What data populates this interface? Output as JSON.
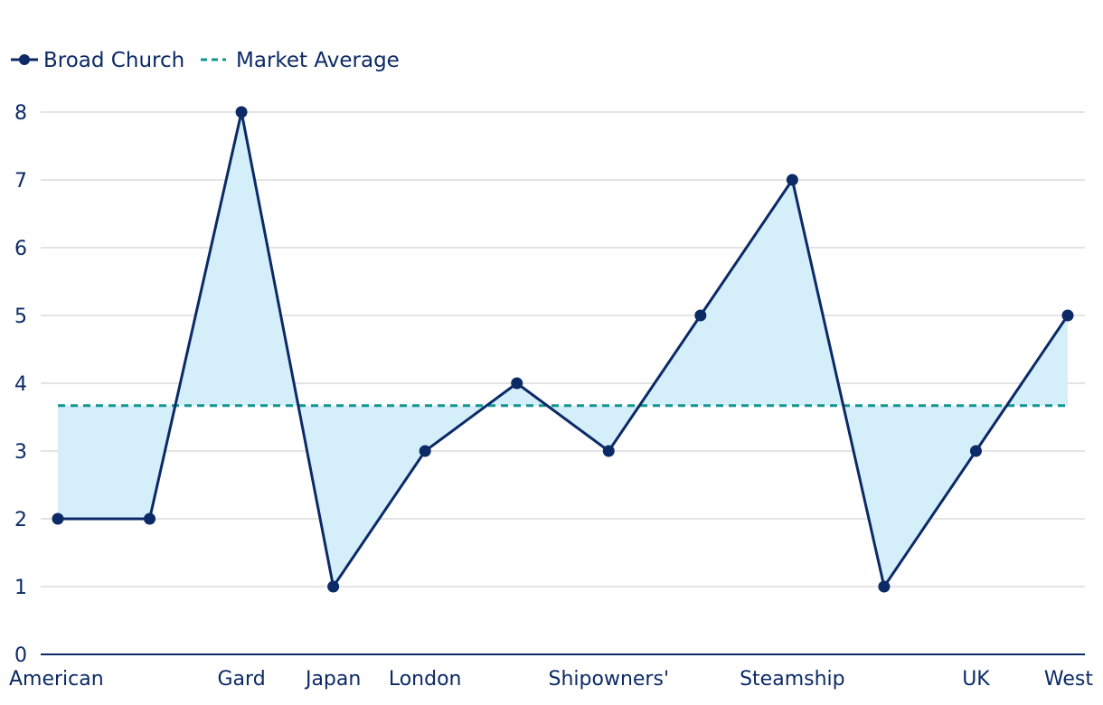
{
  "chart_data": {
    "type": "line",
    "categories": [
      "American",
      "",
      "Gard",
      "Japan",
      "London",
      "",
      "Shipowners'",
      "",
      "Steamship",
      "",
      "UK",
      "West"
    ],
    "series": [
      {
        "name": "Broad Church",
        "values": [
          2,
          2,
          8,
          1,
          3,
          4,
          3,
          5,
          7,
          1,
          3,
          5
        ],
        "color": "#0b2a66",
        "style": "solid-with-markers"
      },
      {
        "name": "Market Average",
        "values": [
          3.67,
          3.67,
          3.67,
          3.67,
          3.67,
          3.67,
          3.67,
          3.67,
          3.67,
          3.67,
          3.67,
          3.67
        ],
        "color": "#12968f",
        "style": "dashed"
      }
    ],
    "fill_between": {
      "series_a": "Broad Church",
      "series_b": "Market Average",
      "color": "#d4effa"
    },
    "yticks": [
      "0",
      "1",
      "2",
      "3",
      "4",
      "5",
      "6",
      "7",
      "8"
    ],
    "ylim": [
      0,
      8
    ],
    "grid": "horizontal",
    "legend": "top-left",
    "title": "",
    "xlabel": "",
    "ylabel": ""
  }
}
